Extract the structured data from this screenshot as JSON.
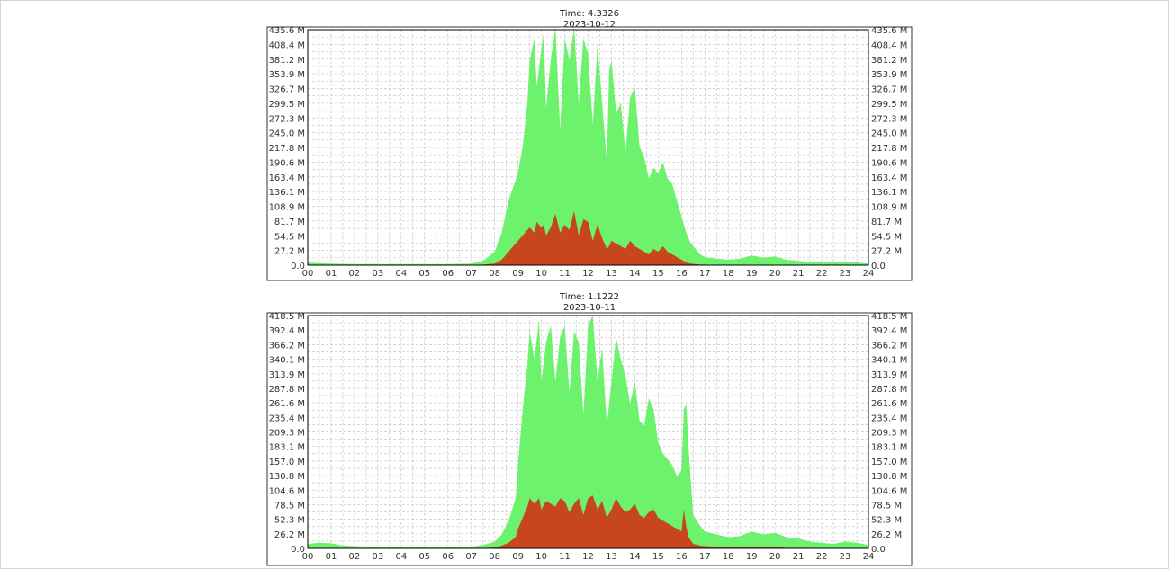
{
  "colors": {
    "green": "#6cf26c",
    "red": "#c8461e",
    "grid": "#c8c8c8"
  },
  "chart_data": [
    {
      "type": "area",
      "title": "Time: 4.3326",
      "subtitle": "2023-10-12",
      "xlabel": "",
      "ylabel": "",
      "x_ticks": [
        "00",
        "01",
        "02",
        "03",
        "04",
        "05",
        "06",
        "07",
        "08",
        "09",
        "10",
        "11",
        "12",
        "13",
        "14",
        "15",
        "16",
        "17",
        "18",
        "19",
        "20",
        "21",
        "22",
        "23",
        "24"
      ],
      "y_ticks": [
        "0.0",
        "27.2 M",
        "54.5 M",
        "81.7 M",
        "108.9 M",
        "136.1 M",
        "163.4 M",
        "190.6 M",
        "217.8 M",
        "245.0 M",
        "272.3 M",
        "299.5 M",
        "326.7 M",
        "353.9 M",
        "381.2 M",
        "408.4 M",
        "435.6 M"
      ],
      "ylim": [
        0,
        435.6
      ],
      "x": [
        0,
        1,
        2,
        3,
        4,
        5,
        6,
        7,
        7.5,
        8,
        8.3,
        8.6,
        9,
        9.2,
        9.4,
        9.5,
        9.7,
        9.8,
        10,
        10.1,
        10.2,
        10.4,
        10.6,
        10.8,
        11,
        11.2,
        11.4,
        11.6,
        11.8,
        12,
        12.2,
        12.4,
        12.6,
        12.8,
        12.9,
        13,
        13.2,
        13.4,
        13.6,
        13.8,
        14,
        14.2,
        14.4,
        14.6,
        14.8,
        15,
        15.2,
        15.4,
        15.6,
        15.8,
        16,
        16.2,
        16.4,
        16.6,
        16.8,
        17,
        17.5,
        18,
        18.5,
        19,
        19.5,
        20,
        20.5,
        21,
        21.5,
        22,
        22.5,
        23,
        23.5,
        24
      ],
      "series": [
        {
          "values": [
            5,
            3,
            2,
            2,
            2,
            2,
            2,
            3,
            8,
            25,
            60,
            120,
            170,
            220,
            300,
            380,
            420,
            330,
            400,
            430,
            290,
            380,
            440,
            250,
            420,
            380,
            440,
            300,
            420,
            390,
            260,
            410,
            300,
            190,
            360,
            380,
            280,
            300,
            210,
            310,
            330,
            220,
            200,
            160,
            180,
            170,
            190,
            160,
            150,
            120,
            90,
            60,
            40,
            30,
            20,
            15,
            12,
            10,
            12,
            18,
            14,
            16,
            10,
            8,
            6,
            7,
            5,
            6,
            5,
            3
          ]
        },
        {
          "values": [
            0,
            0,
            0,
            0,
            0,
            0,
            0,
            0,
            1,
            3,
            10,
            25,
            45,
            55,
            65,
            70,
            60,
            80,
            70,
            75,
            55,
            70,
            95,
            60,
            75,
            65,
            100,
            55,
            85,
            80,
            45,
            75,
            50,
            30,
            35,
            45,
            40,
            35,
            30,
            45,
            35,
            30,
            25,
            20,
            30,
            25,
            35,
            25,
            20,
            15,
            10,
            5,
            3,
            2,
            1,
            1,
            0,
            0,
            0,
            0,
            0,
            0,
            0,
            0,
            0,
            0,
            0,
            0,
            0,
            0
          ]
        }
      ]
    },
    {
      "type": "area",
      "title": "Time: 1.1222",
      "subtitle": "2023-10-11",
      "xlabel": "",
      "ylabel": "",
      "x_ticks": [
        "00",
        "01",
        "02",
        "03",
        "04",
        "05",
        "06",
        "07",
        "08",
        "09",
        "10",
        "11",
        "12",
        "13",
        "14",
        "15",
        "16",
        "17",
        "18",
        "19",
        "20",
        "21",
        "22",
        "23",
        "24"
      ],
      "y_ticks": [
        "0.0",
        "26.2 M",
        "52.3 M",
        "78.5 M",
        "104.6 M",
        "130.8 M",
        "157.0 M",
        "183.1 M",
        "209.3 M",
        "235.4 M",
        "261.6 M",
        "287.8 M",
        "313.9 M",
        "340.1 M",
        "366.2 M",
        "392.4 M",
        "418.5 M"
      ],
      "ylim": [
        0,
        418.5
      ],
      "x": [
        0,
        0.5,
        1,
        1.5,
        2,
        2.5,
        3,
        4,
        5,
        6,
        7,
        7.5,
        8,
        8.3,
        8.6,
        8.9,
        9,
        9.2,
        9.4,
        9.5,
        9.7,
        9.9,
        10,
        10.2,
        10.4,
        10.6,
        10.8,
        11,
        11.2,
        11.4,
        11.6,
        11.8,
        12,
        12.2,
        12.4,
        12.6,
        12.8,
        13,
        13.2,
        13.4,
        13.6,
        13.8,
        14,
        14.2,
        14.4,
        14.6,
        14.8,
        15,
        15.2,
        15.4,
        15.6,
        15.8,
        16,
        16.1,
        16.2,
        16.3,
        16.5,
        16.8,
        17,
        17.5,
        18,
        18.5,
        19,
        19.5,
        20,
        20.5,
        21,
        21.5,
        22,
        22.5,
        23,
        23.5,
        24
      ],
      "series": [
        {
          "values": [
            8,
            10,
            9,
            5,
            4,
            3,
            3,
            3,
            2,
            2,
            3,
            6,
            12,
            25,
            50,
            90,
            150,
            250,
            330,
            390,
            340,
            410,
            300,
            370,
            400,
            300,
            380,
            400,
            280,
            390,
            370,
            240,
            400,
            420,
            300,
            360,
            220,
            300,
            380,
            340,
            310,
            260,
            300,
            230,
            220,
            270,
            250,
            190,
            170,
            160,
            150,
            130,
            140,
            250,
            260,
            180,
            60,
            40,
            30,
            25,
            20,
            22,
            30,
            25,
            28,
            20,
            18,
            12,
            10,
            8,
            12,
            10,
            6
          ]
        },
        {
          "values": [
            0,
            0,
            0,
            0,
            0,
            0,
            0,
            0,
            0,
            0,
            0,
            0,
            2,
            5,
            10,
            20,
            35,
            55,
            75,
            90,
            80,
            90,
            70,
            85,
            80,
            75,
            90,
            85,
            65,
            80,
            90,
            60,
            90,
            95,
            70,
            85,
            55,
            70,
            90,
            75,
            65,
            70,
            80,
            60,
            55,
            65,
            70,
            55,
            50,
            45,
            40,
            35,
            30,
            70,
            40,
            20,
            8,
            5,
            4,
            3,
            2,
            2,
            2,
            2,
            2,
            1,
            1,
            1,
            0,
            0,
            0,
            0,
            0
          ]
        }
      ]
    }
  ]
}
